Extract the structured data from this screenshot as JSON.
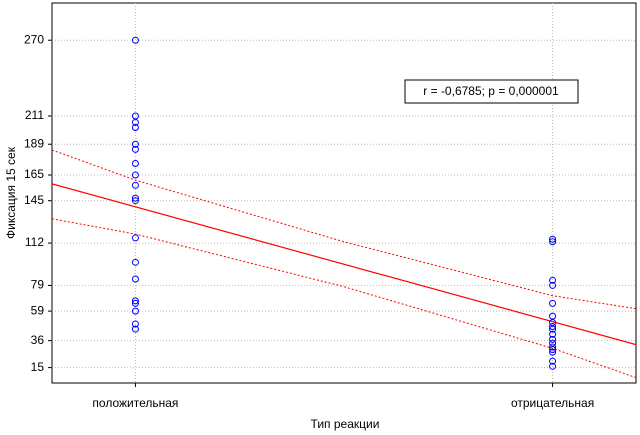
{
  "chart_data": {
    "type": "scatter",
    "x_label": "Тип реакции",
    "y_label": "Фиксация 15 сек",
    "annotation": "r = -0,6785; p = 0,000001",
    "xlim": [
      0.8,
      2.2
    ],
    "xticks": [
      {
        "value": 1,
        "label": "положительная"
      },
      {
        "value": 2,
        "label": "отрицательная"
      }
    ],
    "ylim": [
      3,
      299
    ],
    "yticks": [
      15,
      36,
      59,
      79,
      112,
      145,
      165,
      189,
      211,
      270
    ],
    "grid": true,
    "series": [
      {
        "color": "#0000ff",
        "x": [
          1,
          1,
          1,
          1,
          1,
          1,
          1,
          1,
          1,
          1,
          1,
          1,
          1,
          1,
          1,
          1,
          1,
          1,
          1
        ],
        "values": [
          270,
          211,
          206,
          202,
          189,
          185,
          174,
          165,
          157,
          147,
          145,
          116,
          97,
          84,
          67,
          65,
          59,
          49,
          45
        ]
      },
      {
        "color": "#0000ff",
        "x": [
          2,
          2,
          2,
          2,
          2,
          2,
          2,
          2,
          2,
          2,
          2,
          2,
          2,
          2,
          2,
          2,
          2
        ],
        "values": [
          115,
          113,
          83,
          79,
          65,
          55,
          50,
          47,
          45,
          41,
          37,
          34,
          31,
          29,
          27,
          20,
          16
        ]
      }
    ],
    "fit": {
      "color": "#ff0000",
      "x": [
        0.8,
        2.2
      ],
      "values": [
        158.1,
        32.9
      ]
    },
    "bands": [
      {
        "color": "#ff0000",
        "x": [
          0.8,
          1,
          1.5,
          2,
          2.2
        ],
        "values": [
          184.5,
          161,
          113,
          71,
          60.9
        ]
      },
      {
        "color": "#ff0000",
        "x": [
          0.8,
          1,
          1.5,
          2,
          2.2
        ],
        "values": [
          130.9,
          119,
          78,
          30,
          7.2
        ]
      }
    ]
  }
}
